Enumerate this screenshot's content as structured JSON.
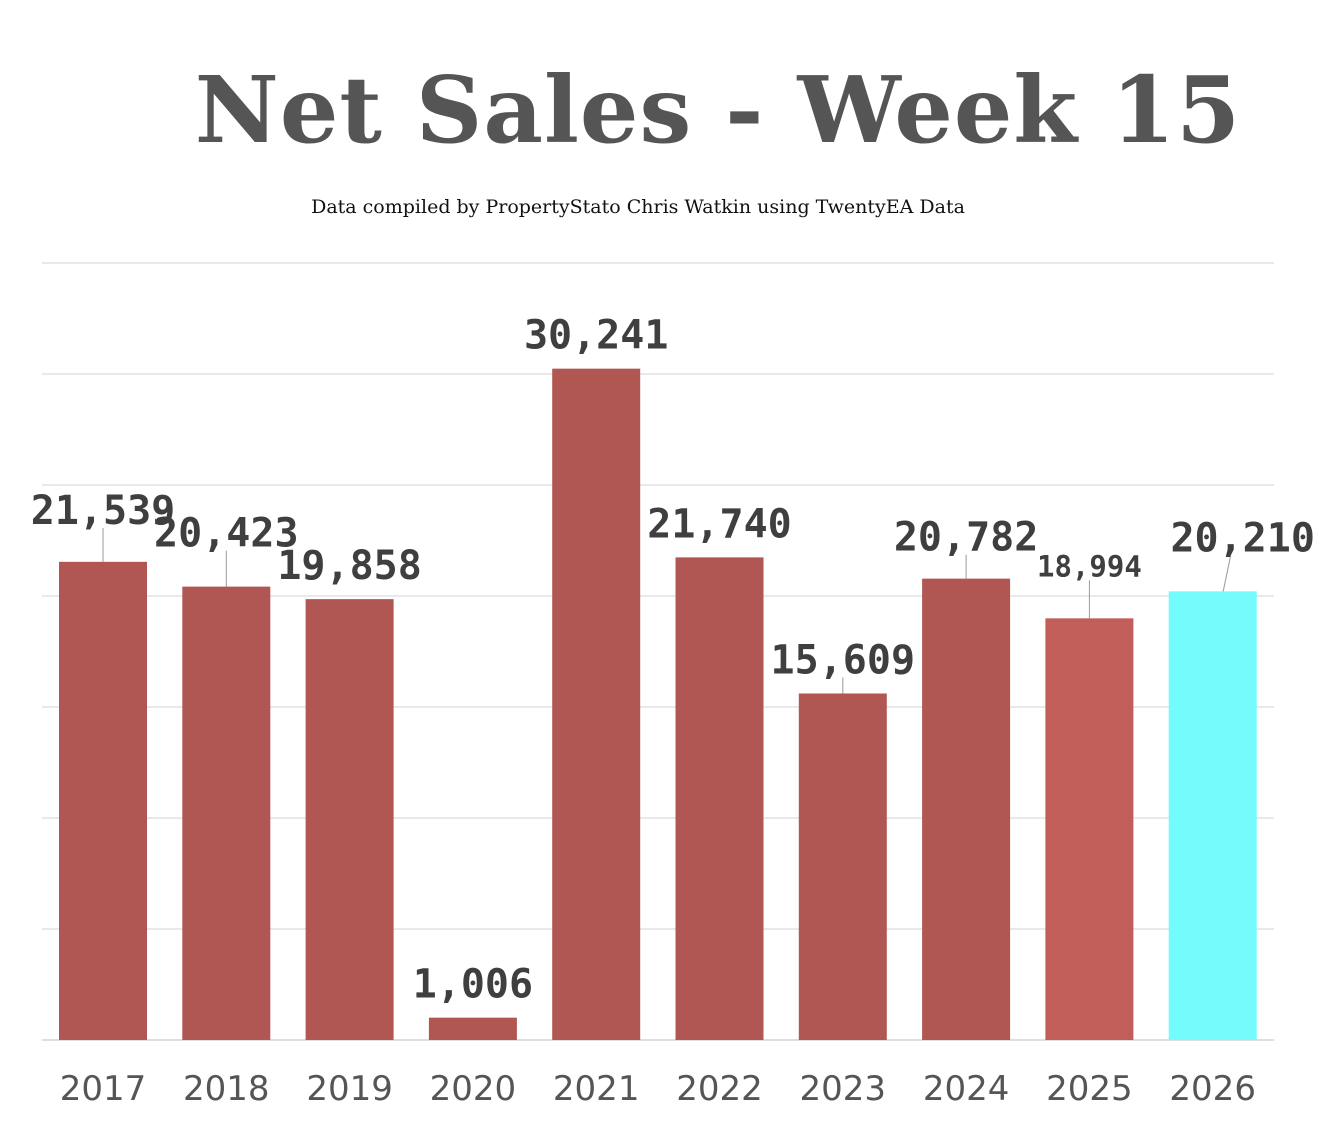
{
  "chart_data": {
    "type": "bar",
    "title": "Net Sales - Week 15",
    "subtitle": "Data compiled by PropertyStato Chris Watkin using TwentyEA Data",
    "categories": [
      "2017",
      "2018",
      "2019",
      "2020",
      "2021",
      "2022",
      "2023",
      "2024",
      "2025",
      "2026"
    ],
    "values": [
      21539,
      20423,
      19858,
      1006,
      30241,
      21740,
      15609,
      20782,
      18994,
      20210
    ],
    "value_labels": [
      "21,539",
      "20,423",
      "19,858",
      "1,006",
      "30,241",
      "21,740",
      "15,609",
      "20,782",
      "18,994",
      "20,210"
    ],
    "bar_colors": [
      "#b05753",
      "#b05753",
      "#b05753",
      "#b05753",
      "#b05753",
      "#b05753",
      "#b05753",
      "#b05753",
      "#c25e59",
      "#74fbfc"
    ],
    "xlabel": "",
    "ylabel": "",
    "ylim": [
      0,
      35000
    ],
    "grid_step": 5000,
    "grid": true,
    "legend": "none"
  }
}
